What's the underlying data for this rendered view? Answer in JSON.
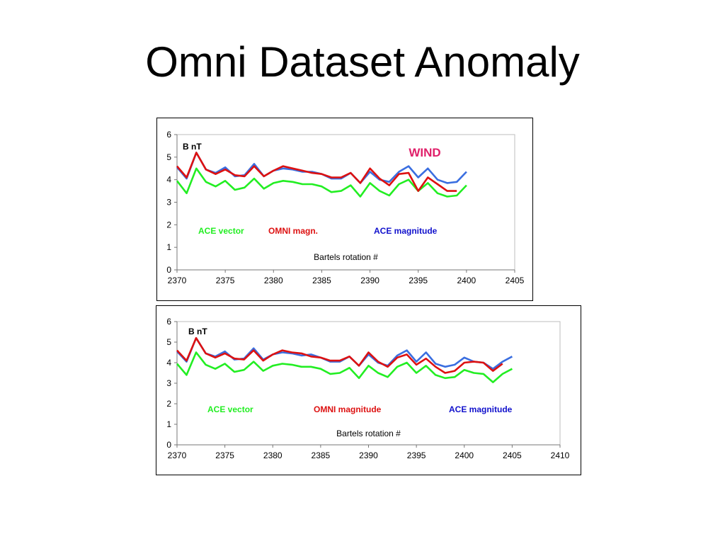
{
  "slide": {
    "title": "Omni Dataset Anomaly"
  },
  "chart_data": [
    {
      "type": "line",
      "title": "",
      "xlabel": "Bartels rotation #",
      "ylabel": "B nT",
      "annotation": "WIND",
      "annotation_color": "#e0206a",
      "xlim": [
        2370,
        2405
      ],
      "ylim": [
        0,
        6
      ],
      "x_ticks": [
        2370,
        2375,
        2380,
        2385,
        2390,
        2395,
        2400,
        2405
      ],
      "y_ticks": [
        0,
        1,
        2,
        3,
        4,
        5,
        6
      ],
      "grid": false,
      "series": [
        {
          "name": "ACE vector",
          "color": "#22ee22",
          "x": [
            2370,
            2371,
            2372,
            2373,
            2374,
            2375,
            2376,
            2377,
            2378,
            2379,
            2380,
            2381,
            2382,
            2383,
            2384,
            2385,
            2386,
            2387,
            2388,
            2389,
            2390,
            2391,
            2392,
            2393,
            2394,
            2395,
            2396,
            2397,
            2398,
            2399,
            2400
          ],
          "y": [
            3.95,
            3.4,
            4.5,
            3.9,
            3.7,
            3.95,
            3.55,
            3.65,
            4.05,
            3.6,
            3.85,
            3.95,
            3.9,
            3.8,
            3.8,
            3.7,
            3.45,
            3.5,
            3.75,
            3.25,
            3.85,
            3.5,
            3.3,
            3.8,
            4.0,
            3.5,
            3.85,
            3.4,
            3.25,
            3.3,
            3.75
          ]
        },
        {
          "name": "ACE magnitude",
          "color": "#3a6ee0",
          "x": [
            2370,
            2371,
            2372,
            2373,
            2374,
            2375,
            2376,
            2377,
            2378,
            2379,
            2380,
            2381,
            2382,
            2383,
            2384,
            2385,
            2386,
            2387,
            2388,
            2389,
            2390,
            2391,
            2392,
            2393,
            2394,
            2395,
            2396,
            2397,
            2398,
            2399,
            2400
          ],
          "y": [
            4.55,
            4.05,
            5.2,
            4.45,
            4.3,
            4.55,
            4.15,
            4.2,
            4.7,
            4.15,
            4.4,
            4.5,
            4.45,
            4.35,
            4.35,
            4.25,
            4.05,
            4.05,
            4.3,
            3.85,
            4.35,
            4.0,
            3.9,
            4.35,
            4.6,
            4.1,
            4.5,
            4.0,
            3.85,
            3.9,
            4.35
          ]
        },
        {
          "name": "OMNI magn.",
          "color": "#dd1111",
          "x": [
            2370,
            2371,
            2372,
            2373,
            2374,
            2375,
            2376,
            2377,
            2378,
            2379,
            2380,
            2381,
            2382,
            2383,
            2384,
            2385,
            2386,
            2387,
            2388,
            2389,
            2390,
            2391,
            2392,
            2393,
            2394,
            2395,
            2396,
            2397,
            2398,
            2399
          ],
          "y": [
            4.6,
            4.1,
            5.2,
            4.45,
            4.25,
            4.45,
            4.2,
            4.15,
            4.6,
            4.15,
            4.4,
            4.6,
            4.5,
            4.4,
            4.3,
            4.25,
            4.1,
            4.1,
            4.3,
            3.85,
            4.5,
            4.05,
            3.75,
            4.25,
            4.3,
            3.5,
            4.1,
            3.8,
            3.5,
            3.5
          ]
        }
      ],
      "legend_labels": [
        "ACE vector",
        "OMNI magn.",
        "ACE magnitude"
      ],
      "legend_colors": [
        "#22ee22",
        "#dd1111",
        "#1111cc"
      ],
      "legend_placement": "inside-middle"
    },
    {
      "type": "line",
      "title": "",
      "xlabel": "Bartels rotation #",
      "ylabel": "B nT",
      "xlim": [
        2370,
        2410
      ],
      "ylim": [
        0,
        6
      ],
      "x_ticks": [
        2370,
        2375,
        2380,
        2385,
        2390,
        2395,
        2400,
        2405,
        2410
      ],
      "y_ticks": [
        0,
        1,
        2,
        3,
        4,
        5,
        6
      ],
      "grid": false,
      "series": [
        {
          "name": "ACE vector",
          "color": "#22ee22",
          "x": [
            2370,
            2371,
            2372,
            2373,
            2374,
            2375,
            2376,
            2377,
            2378,
            2379,
            2380,
            2381,
            2382,
            2383,
            2384,
            2385,
            2386,
            2387,
            2388,
            2389,
            2390,
            2391,
            2392,
            2393,
            2394,
            2395,
            2396,
            2397,
            2398,
            2399,
            2400,
            2401,
            2402,
            2403,
            2404,
            2405
          ],
          "y": [
            3.95,
            3.4,
            4.5,
            3.9,
            3.7,
            3.95,
            3.55,
            3.65,
            4.05,
            3.6,
            3.85,
            3.95,
            3.9,
            3.8,
            3.8,
            3.7,
            3.45,
            3.5,
            3.75,
            3.25,
            3.85,
            3.5,
            3.3,
            3.8,
            4.0,
            3.5,
            3.85,
            3.4,
            3.25,
            3.3,
            3.65,
            3.5,
            3.45,
            3.05,
            3.45,
            3.7
          ]
        },
        {
          "name": "ACE magnitude",
          "color": "#3a6ee0",
          "x": [
            2370,
            2371,
            2372,
            2373,
            2374,
            2375,
            2376,
            2377,
            2378,
            2379,
            2380,
            2381,
            2382,
            2383,
            2384,
            2385,
            2386,
            2387,
            2388,
            2389,
            2390,
            2391,
            2392,
            2393,
            2394,
            2395,
            2396,
            2397,
            2398,
            2399,
            2400,
            2401,
            2402,
            2403,
            2404,
            2405
          ],
          "y": [
            4.55,
            4.05,
            5.2,
            4.45,
            4.3,
            4.55,
            4.15,
            4.2,
            4.7,
            4.15,
            4.4,
            4.5,
            4.45,
            4.35,
            4.4,
            4.25,
            4.05,
            4.05,
            4.3,
            3.85,
            4.4,
            4.0,
            3.85,
            4.35,
            4.6,
            4.05,
            4.5,
            3.95,
            3.8,
            3.9,
            4.25,
            4.05,
            4.0,
            3.7,
            4.05,
            4.3
          ]
        },
        {
          "name": "OMNI magnitude",
          "color": "#dd1111",
          "x": [
            2370,
            2371,
            2372,
            2373,
            2374,
            2375,
            2376,
            2377,
            2378,
            2379,
            2380,
            2381,
            2382,
            2383,
            2384,
            2385,
            2386,
            2387,
            2388,
            2389,
            2390,
            2391,
            2392,
            2393,
            2394,
            2395,
            2396,
            2397,
            2398,
            2399,
            2400,
            2401,
            2402,
            2403,
            2404
          ],
          "y": [
            4.6,
            4.1,
            5.2,
            4.45,
            4.25,
            4.45,
            4.2,
            4.15,
            4.6,
            4.1,
            4.4,
            4.6,
            4.5,
            4.45,
            4.3,
            4.25,
            4.1,
            4.1,
            4.3,
            3.85,
            4.5,
            4.05,
            3.8,
            4.25,
            4.4,
            3.9,
            4.2,
            3.8,
            3.5,
            3.6,
            4.0,
            4.05,
            4.0,
            3.6,
            3.95
          ]
        }
      ],
      "legend_labels": [
        "ACE vector",
        "OMNI magnitude",
        "ACE magnitude"
      ],
      "legend_colors": [
        "#22ee22",
        "#dd1111",
        "#1111cc"
      ],
      "legend_placement": "inside-middle"
    }
  ]
}
